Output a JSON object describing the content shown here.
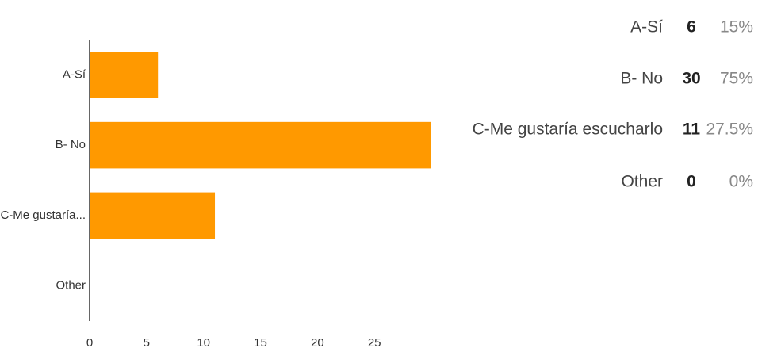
{
  "chart_data": {
    "type": "bar",
    "orientation": "horizontal",
    "categories": [
      "A-Sí",
      "B- No",
      "C-Me gustaría...",
      "Other"
    ],
    "values": [
      6,
      30,
      11,
      0
    ],
    "color": "#ff9900",
    "xlim": [
      0,
      30
    ],
    "xticks": [
      0,
      5,
      10,
      15,
      20,
      25
    ]
  },
  "table": {
    "rows": [
      {
        "label": "A-Sí",
        "count": "6",
        "percent": "15%"
      },
      {
        "label": "B- No",
        "count": "30",
        "percent": "75%"
      },
      {
        "label": "C-Me gustaría escucharlo",
        "count": "11",
        "percent": "27.5%"
      },
      {
        "label": "Other",
        "count": "0",
        "percent": "0%"
      }
    ]
  }
}
